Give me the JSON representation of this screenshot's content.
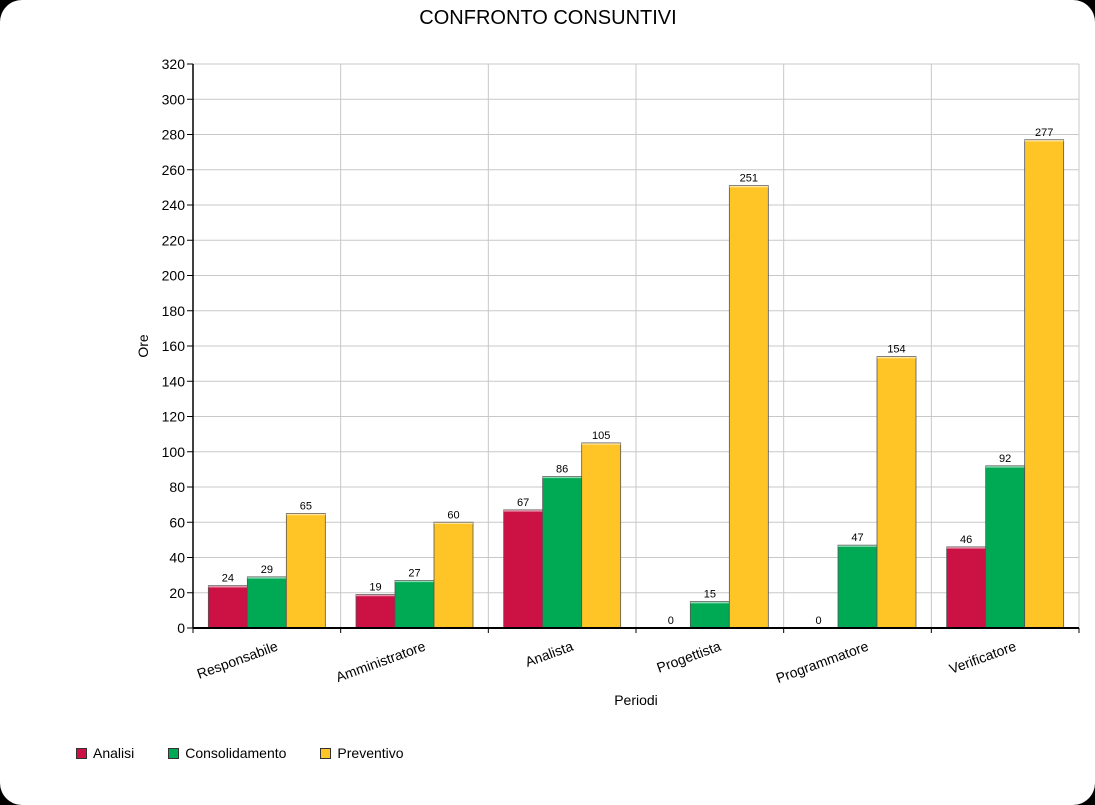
{
  "chart_data": {
    "type": "bar",
    "title": "CONFRONTO CONSUNTIVI",
    "xlabel": "Periodi",
    "ylabel": "Ore",
    "ylim": [
      0,
      320
    ],
    "ytick_step": 20,
    "grid": true,
    "legend_position": "bottom-left",
    "categories": [
      "Responsabile",
      "Amministratore",
      "Analista",
      "Progettista",
      "Programmatore",
      "Verificatore"
    ],
    "series": [
      {
        "name": "Analisi",
        "color": "#cc1144",
        "values": [
          24,
          19,
          67,
          0,
          0,
          46
        ]
      },
      {
        "name": "Consolidamento",
        "color": "#00aa55",
        "values": [
          29,
          27,
          86,
          15,
          47,
          92
        ]
      },
      {
        "name": "Preventivo",
        "color": "#ffc425",
        "values": [
          65,
          60,
          105,
          251,
          154,
          277
        ]
      }
    ]
  }
}
